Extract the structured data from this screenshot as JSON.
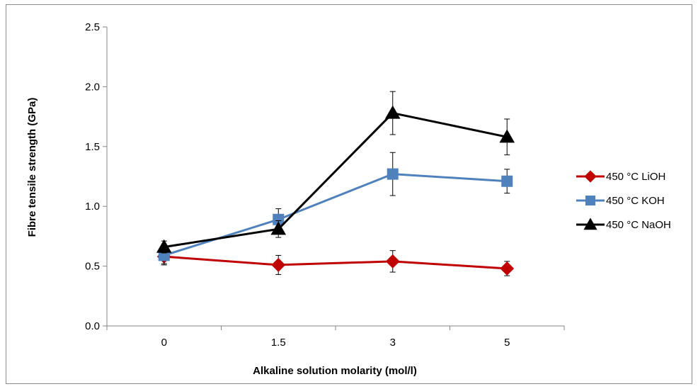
{
  "chart_data": {
    "type": "line",
    "categories": [
      "0",
      "1.5",
      "3",
      "5"
    ],
    "xlabel": "Alkaline solution molarity (mol/l)",
    "ylabel": "Fibre tensile strength (GPa)",
    "ylim": [
      0,
      2.5
    ],
    "yticks": [
      "0.0",
      "0.5",
      "1.0",
      "1.5",
      "2.0",
      "2.5"
    ],
    "grid": false,
    "legend_position": "right",
    "series": [
      {
        "name": "450 °C LiOH",
        "color": "#c00000",
        "marker": "diamond",
        "values": [
          0.58,
          0.51,
          0.54,
          0.48
        ],
        "errors": [
          0.07,
          0.08,
          0.09,
          0.06
        ]
      },
      {
        "name": "450 °C KOH",
        "color": "#4f81bd",
        "marker": "square",
        "values": [
          0.59,
          0.89,
          1.27,
          1.21
        ],
        "errors": [
          0.07,
          0.09,
          0.18,
          0.1
        ]
      },
      {
        "name": "450 °C NaOH",
        "color": "#000000",
        "marker": "triangle",
        "values": [
          0.66,
          0.81,
          1.78,
          1.58
        ],
        "errors": [
          0.05,
          0.07,
          0.18,
          0.15
        ]
      }
    ]
  }
}
